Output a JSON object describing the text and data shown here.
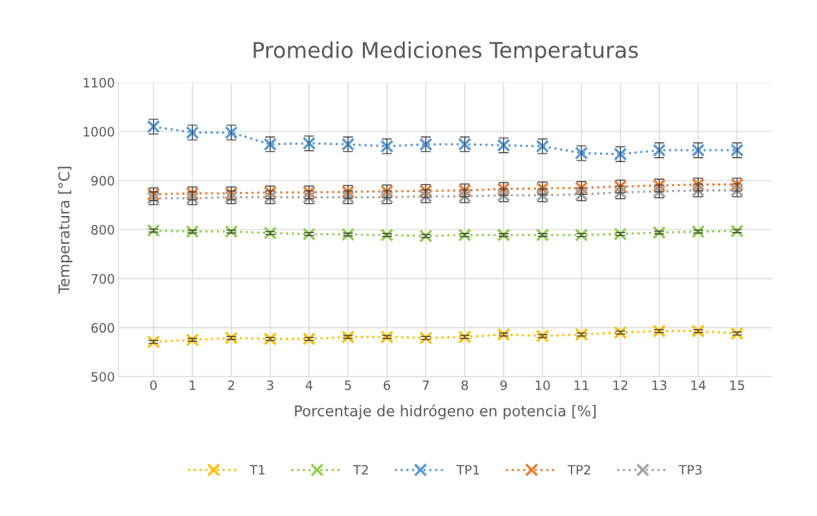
{
  "chart_data": {
    "type": "line",
    "title": "Promedio Mediciones Temperaturas",
    "xlabel": "Porcentaje de hidrógeno en potencia [%]",
    "ylabel": "Temperatura [°C]",
    "categories": [
      "0",
      "1",
      "2",
      "3",
      "4",
      "5",
      "6",
      "7",
      "8",
      "9",
      "10",
      "11",
      "12",
      "13",
      "14",
      "15"
    ],
    "ylim": [
      500,
      1100
    ],
    "yticks": [
      500,
      600,
      700,
      800,
      900,
      1000,
      1100
    ],
    "grid": true,
    "legend": "bottom",
    "marker": "cross",
    "line_style": "dotted",
    "series": [
      {
        "name": "T1",
        "color": "#ffc000",
        "values": [
          571,
          575,
          579,
          577,
          577,
          581,
          581,
          579,
          581,
          586,
          583,
          586,
          590,
          593,
          593,
          588
        ],
        "errors": [
          3,
          3,
          3,
          3,
          3,
          3,
          3,
          3,
          3,
          3,
          3,
          3,
          3,
          3,
          3,
          3
        ]
      },
      {
        "name": "T2",
        "color": "#92d050",
        "values": [
          798,
          796,
          796,
          793,
          791,
          790,
          789,
          787,
          789,
          789,
          789,
          789,
          791,
          794,
          796,
          797
        ],
        "errors": [
          3,
          3,
          3,
          3,
          3,
          3,
          3,
          3,
          3,
          3,
          3,
          3,
          3,
          3,
          3,
          3
        ]
      },
      {
        "name": "TP1",
        "color": "#5b9bd5",
        "values": [
          1010,
          998,
          998,
          974,
          976,
          974,
          970,
          974,
          974,
          972,
          970,
          956,
          954,
          962,
          962,
          962
        ],
        "errors": [
          15,
          15,
          15,
          15,
          15,
          15,
          15,
          15,
          15,
          15,
          15,
          15,
          15,
          15,
          15,
          15
        ]
      },
      {
        "name": "TP2",
        "color": "#ed7d31",
        "values": [
          872,
          874,
          874,
          876,
          876,
          877,
          878,
          879,
          880,
          883,
          884,
          885,
          888,
          890,
          892,
          892
        ],
        "errors": [
          13,
          13,
          13,
          13,
          13,
          13,
          13,
          13,
          13,
          13,
          13,
          13,
          13,
          13,
          13,
          13
        ]
      },
      {
        "name": "TP3",
        "color": "#a5a5a5",
        "values": [
          864,
          864,
          866,
          866,
          866,
          866,
          866,
          868,
          868,
          870,
          870,
          872,
          876,
          878,
          880,
          880
        ],
        "errors": [
          13,
          13,
          13,
          13,
          13,
          13,
          13,
          13,
          13,
          13,
          13,
          13,
          13,
          13,
          13,
          13
        ]
      }
    ]
  }
}
